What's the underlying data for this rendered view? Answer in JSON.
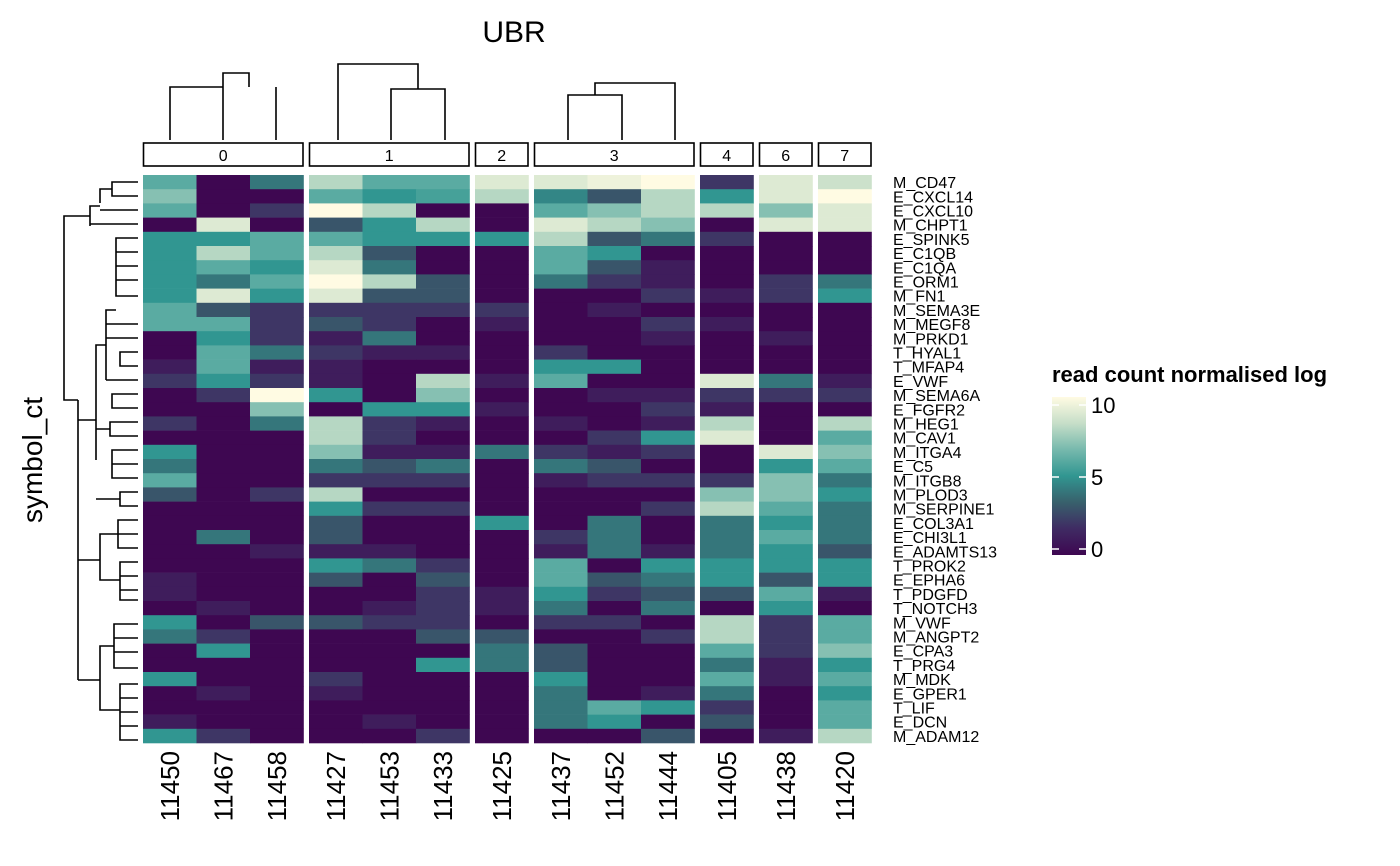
{
  "chart_data": {
    "type": "heatmap",
    "title": "UBR",
    "ylabel": "symbol_ct",
    "legend": {
      "title": "read count normalised log",
      "ticks": [
        10,
        5,
        0
      ],
      "range": [
        0,
        10
      ],
      "placement": "right"
    },
    "colors": {
      "low": "#3e0751",
      "mid": "#319691",
      "high": "#fffbe3",
      "stops": [
        "#3e0751",
        "#3f2b63",
        "#38606c",
        "#319691",
        "#76b9ad",
        "#c6dec8",
        "#fffbe3"
      ]
    },
    "column_groups": [
      {
        "label": "0",
        "columns": [
          "11450",
          "11467",
          "11458"
        ]
      },
      {
        "label": "1",
        "columns": [
          "11427",
          "11453",
          "11433"
        ]
      },
      {
        "label": "2",
        "columns": [
          "11425"
        ]
      },
      {
        "label": "3",
        "columns": [
          "11437",
          "11452",
          "11444"
        ]
      },
      {
        "label": "4",
        "columns": [
          "11405"
        ]
      },
      {
        "label": "6",
        "columns": [
          "11438"
        ]
      },
      {
        "label": "7",
        "columns": [
          "11420"
        ]
      }
    ],
    "rows": [
      "M_CD47",
      "E_CXCL14",
      "E_CXCL10",
      "M_CHPT1",
      "E_SPINK5",
      "E_C1QB",
      "E_C1QA",
      "E_ORM1",
      "M_FN1",
      "M_SEMA3E",
      "M_MEGF8",
      "M_PRKD1",
      "T_HYAL1",
      "T_MFAP4",
      "E_VWF",
      "M_SEMA6A",
      "E_FGFR2",
      "M_HEG1",
      "M_CAV1",
      "M_ITGA4",
      "E_C5",
      "M_ITGB8",
      "M_PLOD3",
      "M_SERPINE1",
      "E_COL3A1",
      "E_CHI3L1",
      "E_ADAMTS13",
      "T_PROK2",
      "E_EPHA6",
      "T_PDGFD",
      "T_NOTCH3",
      "M_VWF",
      "M_ANGPT2",
      "E_CPA3",
      "T_PRG4",
      "M_MDK",
      "E_GPER1",
      "T_LIF",
      "E_DCN",
      "M_ADAM12"
    ],
    "values": [
      [
        6,
        0,
        4,
        8,
        6,
        6,
        9,
        9,
        9.5,
        10,
        2,
        9,
        8.5
      ],
      [
        7,
        0,
        0,
        6,
        5,
        5.5,
        8,
        4.5,
        3,
        8,
        5,
        9,
        10
      ],
      [
        6,
        0,
        2,
        10,
        8,
        0,
        0,
        6,
        7,
        8,
        8,
        7,
        9
      ],
      [
        0,
        9,
        0,
        3,
        5,
        8,
        0,
        9,
        8,
        7,
        0,
        9,
        9
      ],
      [
        5,
        5,
        6,
        6,
        5,
        5,
        5,
        8,
        3,
        4,
        2,
        0,
        0
      ],
      [
        5,
        8,
        6,
        8,
        3,
        0,
        0,
        6,
        5,
        0,
        0,
        0,
        0
      ],
      [
        5,
        6,
        5,
        9,
        4,
        0,
        0,
        6,
        3,
        1,
        0,
        0,
        0
      ],
      [
        5,
        4,
        6,
        10,
        8,
        3,
        0,
        4,
        2,
        1,
        0,
        2,
        4
      ],
      [
        5,
        9,
        5,
        9,
        3,
        3,
        0,
        0,
        0,
        2,
        1,
        2,
        5
      ],
      [
        6,
        3,
        2,
        2,
        2,
        2,
        2,
        0,
        1,
        0,
        0,
        0,
        0
      ],
      [
        6,
        6,
        2,
        3,
        2,
        0,
        1,
        0,
        0,
        2,
        1,
        0,
        0
      ],
      [
        0,
        5,
        2,
        1,
        4,
        0,
        0,
        0,
        0,
        1,
        0,
        1,
        0
      ],
      [
        0,
        6,
        4,
        2,
        1,
        1,
        0,
        2,
        0,
        0,
        0,
        0,
        0
      ],
      [
        1,
        6,
        1,
        1,
        0,
        0,
        0,
        5,
        5,
        0,
        0,
        0,
        0
      ],
      [
        2,
        5,
        2,
        1,
        0,
        8,
        1,
        6,
        0,
        0,
        9,
        4,
        1
      ],
      [
        0,
        2,
        10,
        5,
        0,
        7,
        0,
        0,
        1,
        1,
        2,
        2,
        2
      ],
      [
        0,
        0,
        7,
        0,
        5,
        5,
        1,
        0,
        0,
        2,
        1,
        0,
        0
      ],
      [
        2,
        0,
        4,
        8,
        2,
        1,
        0,
        1,
        0,
        1,
        8,
        0,
        8
      ],
      [
        0,
        0,
        0,
        8,
        2,
        0,
        0,
        0,
        2,
        5,
        9,
        0,
        6
      ],
      [
        5,
        0,
        0,
        7,
        1,
        1,
        4,
        2,
        1,
        2,
        0,
        9,
        7
      ],
      [
        4,
        0,
        0,
        4,
        3,
        4,
        0,
        4,
        3,
        0,
        0,
        5,
        6
      ],
      [
        6,
        0,
        0,
        2,
        2,
        2,
        0,
        1,
        2,
        2,
        2,
        7,
        4
      ],
      [
        3,
        0,
        2,
        8,
        0,
        0,
        0,
        0,
        0,
        0,
        7,
        7,
        5
      ],
      [
        0,
        0,
        0,
        5,
        2,
        2,
        0,
        0,
        0,
        2,
        8,
        6,
        4
      ],
      [
        0,
        0,
        0,
        3,
        0,
        0,
        5,
        0,
        4,
        0,
        4,
        5,
        4
      ],
      [
        0,
        4,
        0,
        3,
        0,
        0,
        0,
        2,
        4,
        0,
        4,
        6,
        4
      ],
      [
        0,
        0,
        1,
        1,
        1,
        0,
        0,
        1,
        4,
        1,
        4,
        5,
        3
      ],
      [
        0,
        0,
        0,
        5,
        4,
        2,
        0,
        6,
        0,
        5,
        5,
        5,
        5
      ],
      [
        1,
        0,
        0,
        3,
        0,
        3,
        0,
        6,
        3,
        4,
        5,
        3,
        5
      ],
      [
        1,
        0,
        0,
        0,
        0,
        2,
        1,
        5,
        2,
        3,
        3,
        6,
        1
      ],
      [
        0,
        1,
        0,
        0,
        1,
        2,
        1,
        4,
        0,
        4,
        0,
        5,
        0
      ],
      [
        5,
        0,
        3,
        3,
        2,
        2,
        0,
        2,
        2,
        0,
        8,
        2,
        6
      ],
      [
        4,
        2,
        0,
        0,
        0,
        3,
        3,
        0,
        0,
        2,
        8,
        2,
        6
      ],
      [
        0,
        5,
        0,
        0,
        0,
        0,
        4,
        3,
        0,
        0,
        6,
        2,
        7
      ],
      [
        0,
        0,
        0,
        0,
        0,
        5,
        4,
        3,
        0,
        0,
        4,
        1,
        5
      ],
      [
        5,
        0,
        0,
        2,
        0,
        0,
        0,
        5,
        0,
        0,
        6,
        1,
        6
      ],
      [
        0,
        1,
        0,
        1,
        0,
        0,
        0,
        4,
        0,
        1,
        4,
        0,
        5
      ],
      [
        0,
        0,
        0,
        0,
        0,
        0,
        0,
        4,
        6,
        5,
        2,
        0,
        6
      ],
      [
        1,
        0,
        0,
        0,
        1,
        0,
        0,
        4,
        5,
        0,
        3,
        0,
        6
      ],
      [
        5,
        2,
        0,
        0,
        0,
        2,
        0,
        0,
        0,
        3,
        0,
        1,
        8
      ]
    ]
  }
}
